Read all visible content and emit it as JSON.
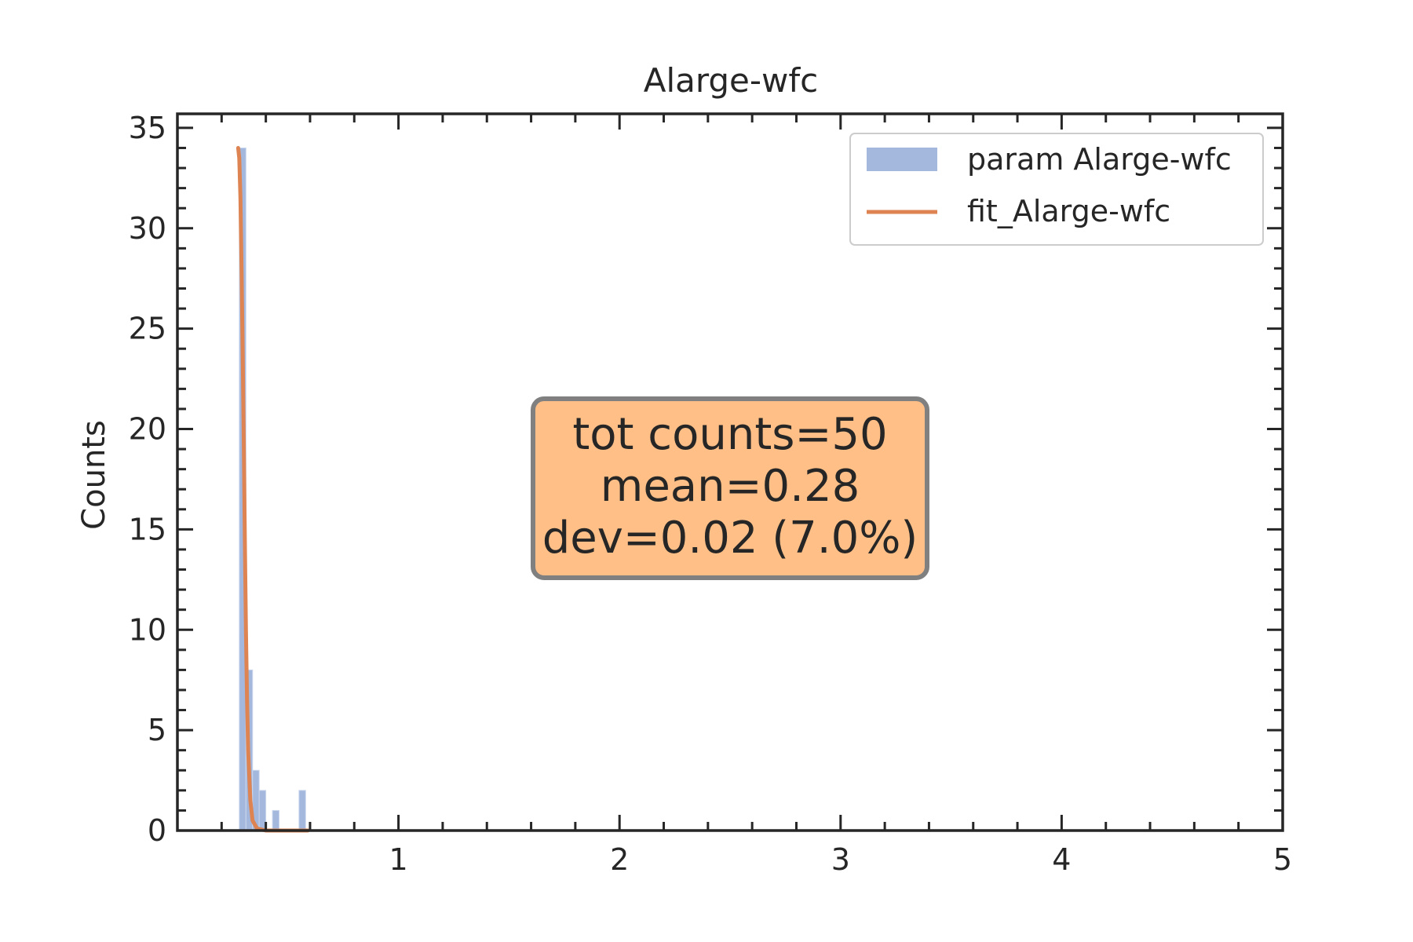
{
  "chart_data": {
    "type": "bar",
    "title": "Alarge-wfc",
    "xlabel": "",
    "ylabel": "Counts",
    "xlim": [
      0,
      5
    ],
    "ylim": [
      0,
      35.7
    ],
    "x_ticks": [
      1,
      2,
      3,
      4,
      5
    ],
    "y_ticks": [
      0,
      5,
      10,
      15,
      20,
      25,
      30,
      35
    ],
    "grid": false,
    "legend_position": "top-right",
    "histogram": {
      "name": "param Alarge-wfc",
      "color": "#a4b8dd",
      "bins": [
        {
          "x0": 0.28,
          "x1": 0.31,
          "count": 34
        },
        {
          "x0": 0.31,
          "x1": 0.34,
          "count": 8
        },
        {
          "x0": 0.34,
          "x1": 0.37,
          "count": 3
        },
        {
          "x0": 0.37,
          "x1": 0.4,
          "count": 2
        },
        {
          "x0": 0.4,
          "x1": 0.43,
          "count": 0
        },
        {
          "x0": 0.43,
          "x1": 0.46,
          "count": 1
        },
        {
          "x0": 0.46,
          "x1": 0.49,
          "count": 0
        },
        {
          "x0": 0.49,
          "x1": 0.52,
          "count": 0
        },
        {
          "x0": 0.52,
          "x1": 0.55,
          "count": 0
        },
        {
          "x0": 0.55,
          "x1": 0.58,
          "count": 2
        }
      ]
    },
    "fit": {
      "name": "fit_Alarge-wfc",
      "color": "#dd8452",
      "x": [
        0.275,
        0.28,
        0.285,
        0.29,
        0.295,
        0.3,
        0.305,
        0.31,
        0.315,
        0.32,
        0.33,
        0.34,
        0.36,
        0.4,
        0.45,
        0.5,
        0.55,
        0.59
      ],
      "y": [
        34,
        33.5,
        31.5,
        28,
        24,
        19.5,
        14.5,
        10,
        6.5,
        4,
        1.5,
        0.5,
        0.1,
        0,
        0,
        0,
        0,
        0
      ]
    },
    "annotation": {
      "lines": [
        "tot counts=50",
        "mean=0.28",
        "dev=0.02 (7.0%)"
      ],
      "facecolor": "#ffbf87",
      "edgecolor": "#808080"
    }
  }
}
